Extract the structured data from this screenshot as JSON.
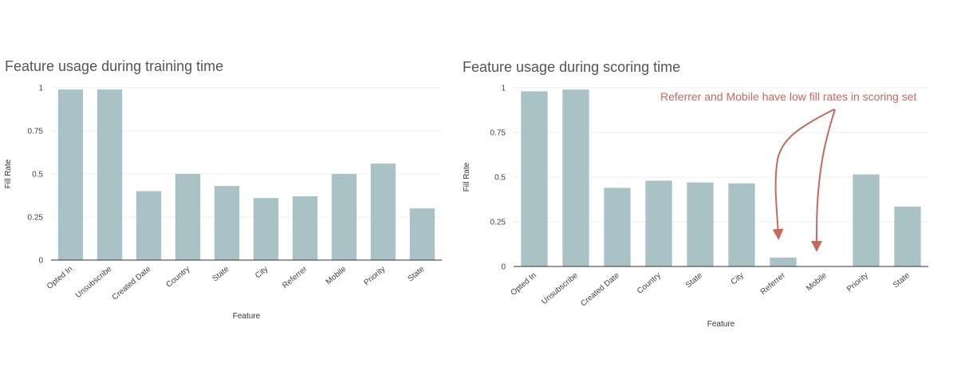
{
  "chart_data": [
    {
      "type": "bar",
      "title": "Feature usage during training time",
      "xlabel": "Feature",
      "ylabel": "Fill Rate",
      "ylim": [
        0,
        1
      ],
      "yticks": [
        "0",
        "0.25",
        "0.5",
        "0.75",
        "1"
      ],
      "grid": true,
      "bar_color": "#a8c2c6",
      "categories": [
        "Opted In",
        "Unsubscribe",
        "Created Date",
        "Country",
        "State",
        "City",
        "Referrer",
        "Mobile",
        "Priority",
        "State"
      ],
      "values": [
        0.99,
        0.99,
        0.4,
        0.5,
        0.43,
        0.36,
        0.37,
        0.5,
        0.56,
        0.3
      ]
    },
    {
      "type": "bar",
      "title": "Feature usage during scoring time",
      "xlabel": "Feature",
      "ylabel": "Fill Rate",
      "ylim": [
        0,
        1
      ],
      "yticks": [
        "0",
        "0.25",
        "0.5",
        "0.75",
        "1"
      ],
      "grid": true,
      "bar_color": "#a8c2c6",
      "categories": [
        "Opted In",
        "Unsubscribe",
        "Created Date",
        "Country",
        "State",
        "City",
        "Referrer",
        "Mobile",
        "Priority",
        "State"
      ],
      "values": [
        0.98,
        0.99,
        0.44,
        0.48,
        0.47,
        0.465,
        0.05,
        0.0,
        0.515,
        0.335
      ],
      "annotation": "Referrer and Mobile have low fill rates in scoring set",
      "annotation_color": "#c8685e"
    }
  ]
}
